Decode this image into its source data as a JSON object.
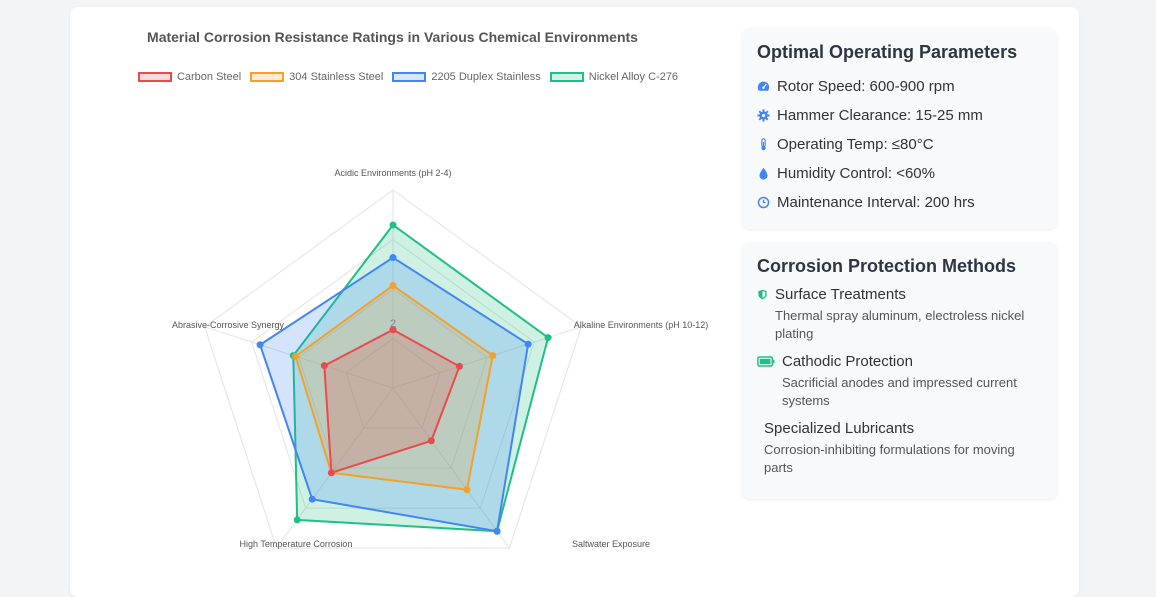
{
  "chart_data": {
    "type": "radar",
    "title": "Material Corrosion Resistance Ratings in Various Chemical Environments",
    "axes": [
      "Acidic Environments (pH 2-4)",
      "Alkaline Environments (pH 10-12)",
      "Saltwater Exposure",
      "High Temperature Corrosion",
      "Abrasive-Corrosive Synergy"
    ],
    "range": [
      0,
      5
    ],
    "tick_label": "2",
    "tick_value": 2,
    "series": [
      {
        "name": "Carbon Steel",
        "values": [
          2.5,
          3.0,
          2.8,
          4.5,
          3.1
        ],
        "color": "#e74c4c"
      },
      {
        "name": "304 Stainless Steel",
        "values": [
          4.4,
          4.5,
          5.4,
          4.5,
          4.4
        ],
        "color": "#f2a12b"
      },
      {
        "name": "2205 Duplex Stainless",
        "values": [
          5.6,
          6.1,
          7.6,
          5.9,
          6.0
        ],
        "color": "#4285f4"
      },
      {
        "name": "Nickel Alloy C-276",
        "values": [
          7.0,
          7.0,
          7.6,
          7.0,
          4.5
        ],
        "color": "#1fbf85"
      }
    ],
    "legend_position": "top"
  },
  "params": {
    "title": "Optimal Operating Parameters",
    "items": [
      {
        "label": "Rotor Speed: 600-900 rpm",
        "icon": "speedometer-icon"
      },
      {
        "label": "Hammer Clearance: 15-25 mm",
        "icon": "gear-icon"
      },
      {
        "label": "Operating Temp: ≤80°C",
        "icon": "thermometer-icon"
      },
      {
        "label": "Humidity Control: <60%",
        "icon": "droplet-icon"
      },
      {
        "label": "Maintenance Interval: 200 hrs",
        "icon": "clock-icon"
      }
    ]
  },
  "methods": {
    "title": "Corrosion Protection Methods",
    "items": [
      {
        "label": "Surface Treatments",
        "desc": "Thermal spray aluminum, electroless nickel plating",
        "icon": "shield-icon"
      },
      {
        "label": "Cathodic Protection",
        "desc": "Sacrificial anodes and impressed current systems",
        "icon": "battery-icon"
      },
      {
        "label": "Specialized Lubricants",
        "desc": "Corrosion-inhibiting formulations for moving parts",
        "icon": ""
      }
    ]
  },
  "colors": {
    "accent": "#4285f4",
    "green": "#1fbf85"
  }
}
